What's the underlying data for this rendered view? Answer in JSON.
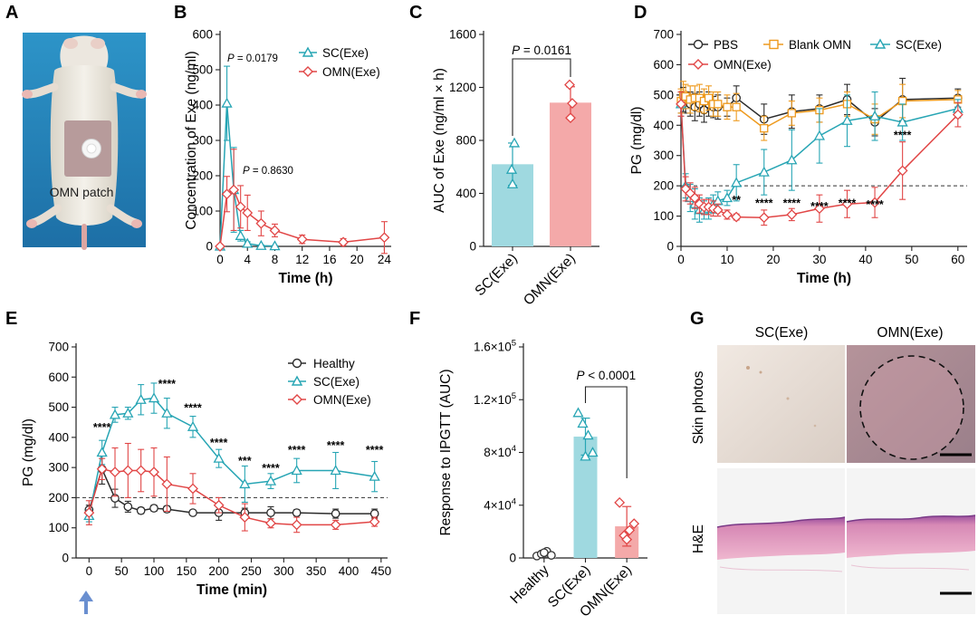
{
  "colors": {
    "sc": "#27a5b4",
    "omn": "#e14646",
    "pbs": "#2b2b2b",
    "blank": "#ee9a1e",
    "sc_bar": "#9fd9e0",
    "omn_bar": "#f4a9a9"
  },
  "panel_labels": {
    "a": "A",
    "b": "B",
    "c": "C",
    "d": "D",
    "e": "E",
    "f": "F",
    "g": "G"
  },
  "photo_a": {
    "label": "OMN patch"
  },
  "chart_data": [
    {
      "id": "b",
      "type": "line",
      "ylabel": "Concentration of Exe (ng/ml)",
      "xlabel": "Time (h)",
      "xlim": [
        0,
        25
      ],
      "ylim": [
        0,
        600
      ],
      "xticks": [
        0,
        4,
        8,
        12,
        16,
        20,
        24
      ],
      "yticks": [
        0,
        100,
        200,
        300,
        400,
        500,
        600
      ],
      "annotations": [
        {
          "p": "P",
          "text": " = 0.0179"
        },
        {
          "p": "P",
          "text": " = 0.8630"
        }
      ],
      "series": [
        {
          "name": "SC(Exe)",
          "color": "#27a5b4",
          "marker": "triangle",
          "x": [
            0,
            1,
            2,
            3,
            4,
            6,
            8
          ],
          "y": [
            0,
            405,
            160,
            30,
            8,
            2,
            1
          ],
          "err": [
            0,
            105,
            120,
            15,
            5,
            2,
            1
          ]
        },
        {
          "name": "OMN(Exe)",
          "color": "#e14646",
          "marker": "diamond",
          "x": [
            0,
            1,
            2,
            3,
            4,
            6,
            8,
            12,
            18,
            24
          ],
          "y": [
            0,
            148,
            160,
            112,
            95,
            65,
            45,
            20,
            12,
            25
          ],
          "err": [
            0,
            50,
            115,
            60,
            50,
            35,
            18,
            12,
            10,
            45
          ]
        }
      ]
    },
    {
      "id": "c",
      "type": "bar",
      "ylabel": "AUC of Exe (ng/ml × h)",
      "ylim": [
        0,
        1600
      ],
      "yticks": [
        0,
        400,
        800,
        1200,
        1600
      ],
      "categories": [
        "SC(Exe)",
        "OMN(Exe)"
      ],
      "values": [
        620,
        1085
      ],
      "err": [
        160,
        120
      ],
      "points": [
        [
          580,
          780,
          470
        ],
        [
          1220,
          1080,
          970
        ]
      ],
      "annotation": {
        "p": "P",
        "text": " = 0.0161"
      }
    },
    {
      "id": "d",
      "type": "line",
      "ylabel": "PG (mg/dl)",
      "xlabel": "Time (h)",
      "xlim": [
        0,
        62
      ],
      "ylim": [
        0,
        700
      ],
      "xticks": [
        0,
        10,
        20,
        30,
        40,
        50,
        60
      ],
      "yticks": [
        0,
        100,
        200,
        300,
        400,
        500,
        600,
        700
      ],
      "threshold": 200,
      "series": [
        {
          "name": "PBS",
          "color": "#2b2b2b",
          "marker": "circle",
          "x": [
            0,
            0.5,
            1,
            2,
            3,
            4,
            5,
            6,
            7,
            8,
            10,
            12,
            18,
            24,
            30,
            36,
            42,
            48,
            60
          ],
          "y": [
            470,
            485,
            475,
            470,
            460,
            470,
            450,
            470,
            460,
            460,
            460,
            490,
            420,
            445,
            455,
            485,
            410,
            485,
            490
          ],
          "err": [
            30,
            40,
            35,
            40,
            45,
            40,
            40,
            40,
            35,
            40,
            30,
            40,
            50,
            55,
            45,
            50,
            45,
            70,
            30
          ]
        },
        {
          "name": "Blank OMN",
          "color": "#ee9a1e",
          "marker": "square",
          "x": [
            0,
            0.5,
            1,
            2,
            3,
            4,
            5,
            6,
            7,
            8,
            10,
            12,
            18,
            24,
            30,
            36,
            42,
            48,
            60
          ],
          "y": [
            480,
            500,
            495,
            485,
            490,
            490,
            480,
            490,
            470,
            470,
            460,
            460,
            390,
            440,
            450,
            470,
            420,
            480,
            485
          ],
          "err": [
            40,
            45,
            40,
            45,
            40,
            45,
            40,
            40,
            40,
            40,
            40,
            45,
            40,
            40,
            40,
            40,
            50,
            55,
            30
          ]
        },
        {
          "name": "SC(Exe)",
          "color": "#27a5b4",
          "marker": "triangle",
          "x": [
            0,
            1,
            2,
            3,
            4,
            5,
            6,
            7,
            8,
            10,
            12,
            18,
            24,
            30,
            36,
            42,
            48,
            60
          ],
          "y": [
            470,
            200,
            160,
            140,
            120,
            120,
            125,
            140,
            150,
            160,
            210,
            245,
            285,
            365,
            415,
            430,
            410,
            455
          ],
          "err": [
            40,
            40,
            45,
            50,
            40,
            30,
            35,
            30,
            30,
            25,
            60,
            75,
            100,
            90,
            85,
            80,
            60,
            30
          ]
        },
        {
          "name": "OMN(Exe)",
          "color": "#e14646",
          "marker": "diamond",
          "x": [
            0,
            1,
            2,
            3,
            4,
            5,
            6,
            7,
            8,
            10,
            12,
            18,
            24,
            30,
            36,
            42,
            48,
            60
          ],
          "y": [
            470,
            190,
            175,
            160,
            140,
            130,
            130,
            125,
            120,
            105,
            97,
            95,
            105,
            125,
            140,
            145,
            250,
            435
          ],
          "err": [
            40,
            40,
            35,
            35,
            30,
            25,
            25,
            25,
            20,
            15,
            10,
            25,
            20,
            45,
            45,
            50,
            95,
            40
          ]
        }
      ],
      "stars": [
        {
          "x": 12,
          "y": 140,
          "text": "**"
        },
        {
          "x": 18,
          "y": 130,
          "text": "****"
        },
        {
          "x": 24,
          "y": 130,
          "text": "****"
        },
        {
          "x": 30,
          "y": 120,
          "text": "****"
        },
        {
          "x": 36,
          "y": 130,
          "text": "****"
        },
        {
          "x": 42,
          "y": 125,
          "text": "****"
        },
        {
          "x": 48,
          "y": 355,
          "text": "****"
        }
      ]
    },
    {
      "id": "e",
      "type": "line",
      "ylabel": "PG (mg/dl)",
      "xlabel": "Time (min)",
      "xlim": [
        -20,
        460
      ],
      "ylim": [
        0,
        700
      ],
      "xticks": [
        0,
        50,
        100,
        150,
        200,
        250,
        300,
        350,
        400,
        450
      ],
      "yticks": [
        0,
        100,
        200,
        300,
        400,
        500,
        600,
        700
      ],
      "threshold": 200,
      "series": [
        {
          "name": "Healthy",
          "color": "#2b2b2b",
          "marker": "circle",
          "x": [
            0,
            20,
            40,
            60,
            80,
            100,
            120,
            160,
            200,
            240,
            280,
            320,
            380,
            440
          ],
          "y": [
            160,
            295,
            198,
            170,
            157,
            165,
            162,
            150,
            150,
            150,
            150,
            150,
            147,
            147
          ],
          "err": [
            15,
            50,
            30,
            18,
            10,
            10,
            10,
            8,
            25,
            15,
            20,
            10,
            15,
            15
          ]
        },
        {
          "name": "SC(Exe)",
          "color": "#27a5b4",
          "marker": "triangle",
          "x": [
            0,
            20,
            40,
            60,
            80,
            100,
            120,
            160,
            200,
            240,
            280,
            320,
            380,
            440
          ],
          "y": [
            140,
            350,
            475,
            480,
            525,
            530,
            480,
            435,
            330,
            245,
            255,
            290,
            290,
            270
          ],
          "err": [
            20,
            40,
            25,
            20,
            50,
            50,
            50,
            35,
            30,
            60,
            25,
            40,
            60,
            50
          ]
        },
        {
          "name": "OMN(Exe)",
          "color": "#e14646",
          "marker": "diamond",
          "x": [
            0,
            20,
            40,
            60,
            80,
            100,
            120,
            160,
            200,
            240,
            280,
            320,
            380,
            440
          ],
          "y": [
            150,
            295,
            285,
            290,
            290,
            285,
            245,
            230,
            175,
            135,
            115,
            110,
            110,
            120
          ],
          "err": [
            40,
            35,
            80,
            90,
            70,
            80,
            90,
            50,
            25,
            45,
            15,
            25,
            15,
            15
          ]
        }
      ],
      "stars": [
        {
          "x": 20,
          "y": 420,
          "text": "****"
        },
        {
          "x": 120,
          "y": 565,
          "text": "****"
        },
        {
          "x": 160,
          "y": 485,
          "text": "****"
        },
        {
          "x": 200,
          "y": 370,
          "text": "****"
        },
        {
          "x": 240,
          "y": 310,
          "text": "***"
        },
        {
          "x": 280,
          "y": 285,
          "text": "****"
        },
        {
          "x": 320,
          "y": 345,
          "text": "****"
        },
        {
          "x": 380,
          "y": 360,
          "text": "****"
        },
        {
          "x": 440,
          "y": 345,
          "text": "****"
        }
      ]
    },
    {
      "id": "f",
      "type": "bar",
      "ylabel": "Response to IPGTT (AUC)",
      "ylim": [
        0,
        160000
      ],
      "yticks": [
        0,
        40000,
        80000,
        120000,
        160000
      ],
      "ytick_labels": [
        {
          "base": "0",
          "exp": ""
        },
        {
          "base": "4×10",
          "exp": "4"
        },
        {
          "base": "8×10",
          "exp": "4"
        },
        {
          "base": "1.2×10",
          "exp": "5"
        },
        {
          "base": "1.6×10",
          "exp": "5"
        }
      ],
      "categories": [
        "Healthy",
        "SC(Exe)",
        "OMN(Exe)"
      ],
      "values": [
        3000,
        92000,
        24000
      ],
      "err": [
        2500,
        14000,
        15000
      ],
      "points": [
        [
          1500,
          3000,
          5000,
          2000,
          4000
        ],
        [
          110000,
          102000,
          93000,
          80000,
          77000
        ],
        [
          42000,
          17000,
          21000,
          26000,
          14000
        ]
      ],
      "annotation": {
        "p": "P",
        "text": " < 0.0001"
      }
    }
  ],
  "panel_g": {
    "col_labels": [
      "SC(Exe)",
      "OMN(Exe)"
    ],
    "row_labels": [
      "Skin photos",
      "H&E"
    ]
  }
}
